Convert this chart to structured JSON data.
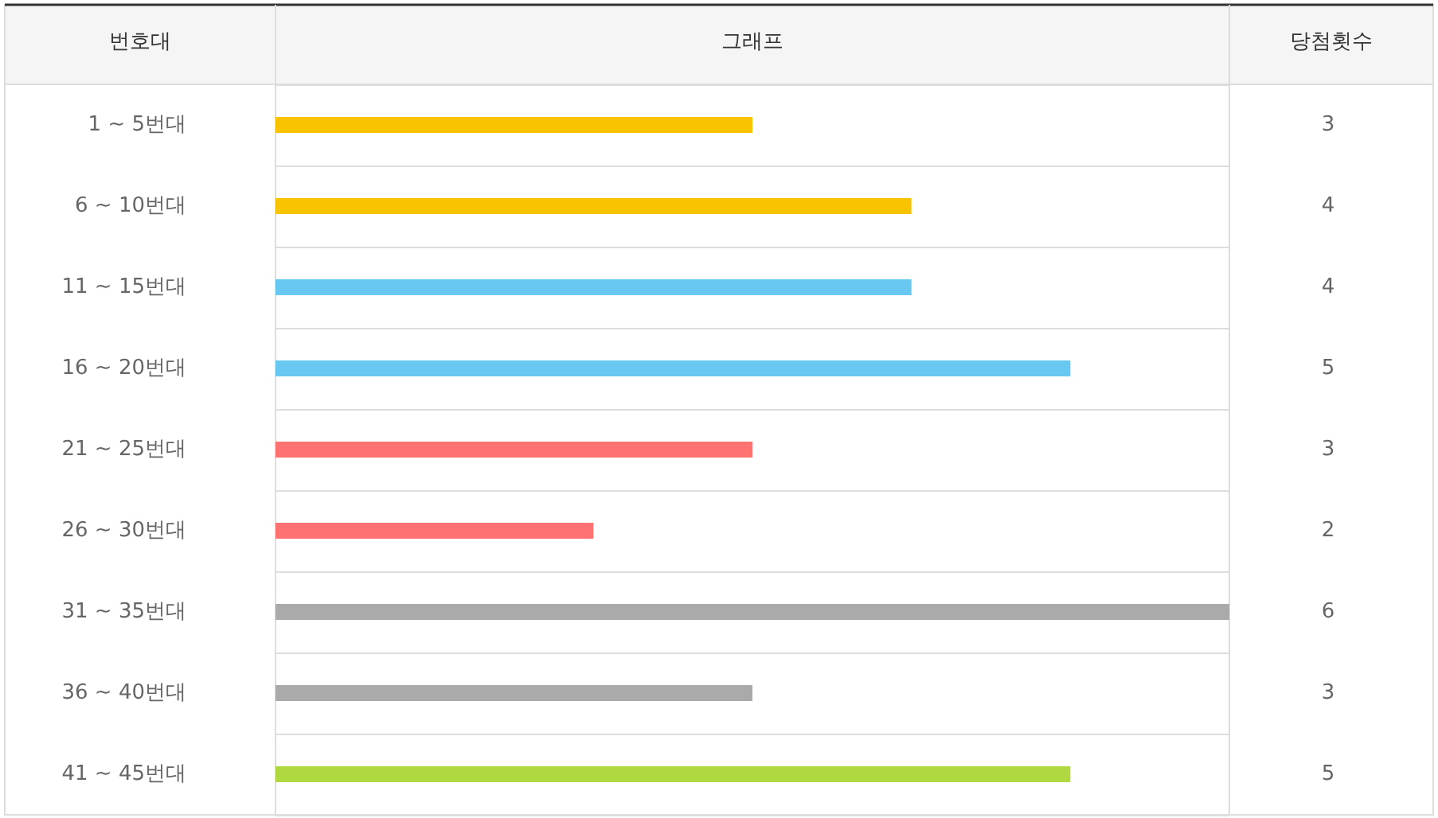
{
  "chart_data": {
    "type": "bar",
    "orientation": "horizontal",
    "ylabel": "번호대",
    "xlabel": "그래프",
    "y2label": "당첨횟수",
    "categories": [
      "1 ~ 5번대",
      "6 ~ 10번대",
      "11 ~ 15번대",
      "16 ~ 20번대",
      "21 ~ 25번대",
      "26 ~ 30번대",
      "31 ~ 35번대",
      "36 ~ 40번대",
      "41 ~ 45번대"
    ],
    "values": [
      3,
      4,
      4,
      5,
      3,
      2,
      6,
      3,
      5
    ],
    "colors": [
      "#f8c300",
      "#f8c300",
      "#69c8f2",
      "#69c8f2",
      "#ff7272",
      "#ff7272",
      "#aaaaaa",
      "#aaaaaa",
      "#b0d840"
    ],
    "xlim": [
      0,
      6
    ],
    "tick_labels": "y",
    "grid": "y",
    "data_labels": true
  }
}
